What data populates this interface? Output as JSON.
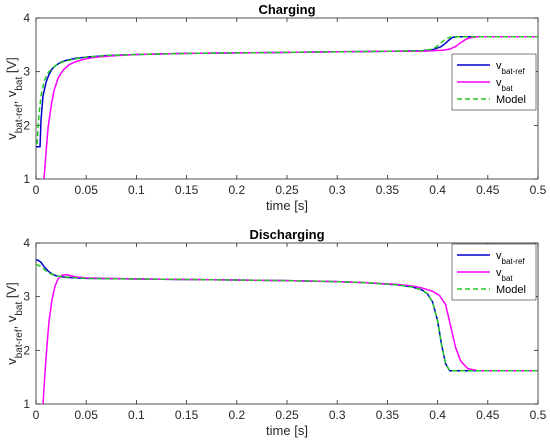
{
  "chart_data": [
    {
      "type": "line",
      "title": "Charging",
      "xlabel": "time [s]",
      "ylabel_parts": [
        "v",
        "bat-ref",
        ", v",
        "bat",
        " [V]"
      ],
      "xlim": [
        0,
        0.5
      ],
      "ylim": [
        1,
        4
      ],
      "xticks": [
        0,
        0.05,
        0.1,
        0.15,
        0.2,
        0.25,
        0.3,
        0.35,
        0.4,
        0.45,
        0.5
      ],
      "xtick_labels": [
        "0",
        "0.05",
        "0.1",
        "0.15",
        "0.2",
        "0.25",
        "0.3",
        "0.35",
        "0.4",
        "0.45",
        "0.5"
      ],
      "yticks": [
        1,
        2,
        3,
        4
      ],
      "ytick_labels": [
        "1",
        "2",
        "3",
        "4"
      ],
      "grid": false,
      "legend_position": "right",
      "series": [
        {
          "legend_main": "v",
          "legend_sub": "bat-ref",
          "color": "#0000cc",
          "dash": "solid",
          "x": [
            0,
            0.004,
            0.005,
            0.007,
            0.01,
            0.013,
            0.016,
            0.02,
            0.025,
            0.03,
            0.04,
            0.05,
            0.07,
            0.1,
            0.15,
            0.2,
            0.25,
            0.3,
            0.35,
            0.385,
            0.395,
            0.403,
            0.408,
            0.412,
            0.415,
            0.42,
            0.43,
            0.5
          ],
          "y": [
            1.6,
            1.6,
            2.1,
            2.55,
            2.8,
            2.95,
            3.05,
            3.12,
            3.18,
            3.21,
            3.25,
            3.27,
            3.3,
            3.32,
            3.34,
            3.35,
            3.36,
            3.37,
            3.38,
            3.39,
            3.41,
            3.46,
            3.53,
            3.6,
            3.64,
            3.65,
            3.65,
            3.65
          ]
        },
        {
          "legend_main": "v",
          "legend_sub": "bat",
          "color": "#ff00ff",
          "dash": "solid",
          "x": [
            0.008,
            0.01,
            0.012,
            0.015,
            0.018,
            0.022,
            0.027,
            0.033,
            0.04,
            0.05,
            0.06,
            0.08,
            0.1,
            0.15,
            0.2,
            0.25,
            0.3,
            0.35,
            0.385,
            0.395,
            0.405,
            0.412,
            0.418,
            0.423,
            0.428,
            0.432,
            0.44,
            0.5
          ],
          "y": [
            1.0,
            1.5,
            1.95,
            2.35,
            2.65,
            2.88,
            3.03,
            3.13,
            3.19,
            3.24,
            3.27,
            3.3,
            3.32,
            3.34,
            3.35,
            3.36,
            3.37,
            3.38,
            3.38,
            3.39,
            3.4,
            3.42,
            3.47,
            3.54,
            3.6,
            3.63,
            3.65,
            3.65
          ]
        },
        {
          "legend_main": "Model",
          "legend_sub": "",
          "color": "#22cc22",
          "dash": "dashed",
          "x": [
            0.001,
            0.003,
            0.005,
            0.008,
            0.012,
            0.016,
            0.02,
            0.025,
            0.03,
            0.04,
            0.05,
            0.07,
            0.1,
            0.15,
            0.2,
            0.25,
            0.3,
            0.35,
            0.385,
            0.395,
            0.4,
            0.404,
            0.408,
            0.412,
            0.42,
            0.5
          ],
          "y": [
            1.65,
            2.2,
            2.55,
            2.82,
            2.98,
            3.06,
            3.12,
            3.17,
            3.2,
            3.24,
            3.27,
            3.3,
            3.32,
            3.34,
            3.35,
            3.36,
            3.37,
            3.38,
            3.39,
            3.42,
            3.48,
            3.55,
            3.61,
            3.64,
            3.65,
            3.65
          ]
        }
      ]
    },
    {
      "type": "line",
      "title": "Discharging",
      "xlabel": "time [s]",
      "ylabel_parts": [
        "v",
        "bat-ref",
        ", v",
        "bat",
        " [V]"
      ],
      "xlim": [
        0,
        0.5
      ],
      "ylim": [
        1,
        4
      ],
      "xticks": [
        0,
        0.05,
        0.1,
        0.15,
        0.2,
        0.25,
        0.3,
        0.35,
        0.4,
        0.45,
        0.5
      ],
      "xtick_labels": [
        "0",
        "0.05",
        "0.1",
        "0.15",
        "0.2",
        "0.25",
        "0.3",
        "0.35",
        "0.4",
        "0.45",
        "0.5"
      ],
      "yticks": [
        1,
        2,
        3,
        4
      ],
      "ytick_labels": [
        "1",
        "2",
        "3",
        "4"
      ],
      "grid": false,
      "legend_position": "right",
      "series": [
        {
          "legend_main": "v",
          "legend_sub": "bat-ref",
          "color": "#0000cc",
          "dash": "solid",
          "x": [
            0,
            0.002,
            0.005,
            0.008,
            0.012,
            0.016,
            0.02,
            0.025,
            0.03,
            0.04,
            0.05,
            0.1,
            0.15,
            0.2,
            0.25,
            0.3,
            0.33,
            0.36,
            0.375,
            0.385,
            0.39,
            0.395,
            0.4,
            0.404,
            0.408,
            0.412,
            0.42,
            0.5
          ],
          "y": [
            3.68,
            3.68,
            3.64,
            3.56,
            3.48,
            3.42,
            3.39,
            3.37,
            3.36,
            3.35,
            3.34,
            3.33,
            3.32,
            3.31,
            3.3,
            3.28,
            3.26,
            3.22,
            3.18,
            3.12,
            3.05,
            2.9,
            2.55,
            2.1,
            1.75,
            1.62,
            1.62,
            1.62
          ]
        },
        {
          "legend_main": "v",
          "legend_sub": "bat",
          "color": "#ff00ff",
          "dash": "solid",
          "x": [
            0.007,
            0.009,
            0.011,
            0.013,
            0.016,
            0.019,
            0.022,
            0.026,
            0.03,
            0.035,
            0.04,
            0.05,
            0.1,
            0.15,
            0.2,
            0.25,
            0.3,
            0.33,
            0.36,
            0.375,
            0.385,
            0.395,
            0.402,
            0.408,
            0.413,
            0.418,
            0.423,
            0.43,
            0.44,
            0.5
          ],
          "y": [
            1.0,
            1.6,
            2.1,
            2.55,
            2.95,
            3.2,
            3.33,
            3.4,
            3.41,
            3.39,
            3.37,
            3.35,
            3.33,
            3.32,
            3.31,
            3.3,
            3.28,
            3.26,
            3.23,
            3.2,
            3.16,
            3.1,
            3.02,
            2.85,
            2.45,
            2.05,
            1.8,
            1.66,
            1.62,
            1.62
          ]
        },
        {
          "legend_main": "Model",
          "legend_sub": "",
          "color": "#22cc22",
          "dash": "dashed",
          "x": [
            0,
            0.003,
            0.006,
            0.01,
            0.014,
            0.018,
            0.022,
            0.028,
            0.035,
            0.05,
            0.1,
            0.15,
            0.2,
            0.25,
            0.3,
            0.33,
            0.36,
            0.375,
            0.385,
            0.39,
            0.395,
            0.4,
            0.404,
            0.408,
            0.412,
            0.42,
            0.5
          ],
          "y": [
            3.6,
            3.58,
            3.54,
            3.48,
            3.43,
            3.4,
            3.38,
            3.37,
            3.36,
            3.34,
            3.33,
            3.32,
            3.31,
            3.3,
            3.28,
            3.26,
            3.22,
            3.18,
            3.12,
            3.05,
            2.9,
            2.55,
            2.1,
            1.75,
            1.62,
            1.62,
            1.62
          ]
        }
      ]
    }
  ]
}
